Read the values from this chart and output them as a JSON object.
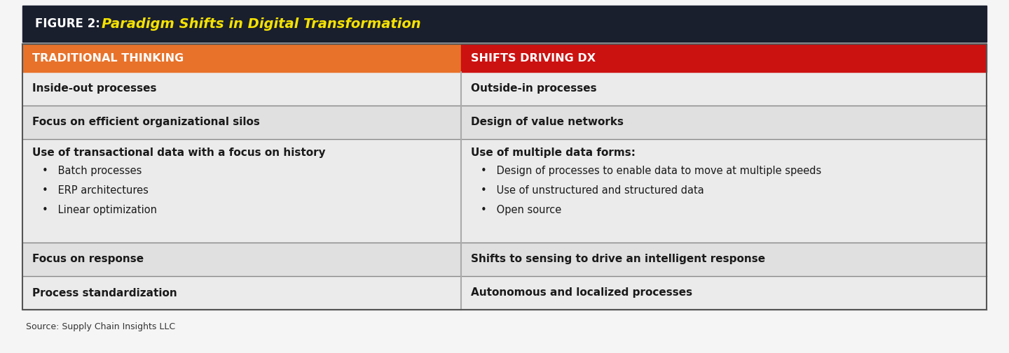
{
  "title_prefix": "FIGURE 2: ",
  "title_main": "Paradigm Shifts in Digital Transformation",
  "title_prefix_color": "#ffffff",
  "title_main_color": "#f5e200",
  "title_bg_color": "#1a1f2e",
  "header_left": "TRADITIONAL THINKING",
  "header_right": "SHIFTS DRIVING DX",
  "header_left_bg": "#e8722a",
  "header_right_bg": "#cc1111",
  "header_text_color": "#ffffff",
  "col_split": 0.455,
  "rows": [
    {
      "left": "Inside-out processes",
      "right": "Outside-in processes",
      "left_bold": true,
      "right_bold": true,
      "bg_left": "#ebebeb",
      "bg_right": "#ebebeb",
      "tall": false
    },
    {
      "left": "Focus on efficient organizational silos",
      "right": "Design of value networks",
      "left_bold": true,
      "right_bold": true,
      "bg_left": "#e0e0e0",
      "bg_right": "#e0e0e0",
      "tall": false
    },
    {
      "left_title": "Use of transactional data with a focus on history",
      "left_bullets": [
        "Batch processes",
        "ERP architectures",
        "Linear optimization"
      ],
      "right_title": "Use of multiple data forms:",
      "right_bullets": [
        "Design of processes to enable data to move at multiple speeds",
        "Use of unstructured and structured data",
        "Open source"
      ],
      "left_bold": false,
      "right_bold": false,
      "bg_left": "#ebebeb",
      "bg_right": "#ebebeb",
      "tall": true
    },
    {
      "left": "Focus on response",
      "right": "Shifts to sensing to drive an intelligent response",
      "left_bold": true,
      "right_bold": true,
      "bg_left": "#e0e0e0",
      "bg_right": "#e0e0e0",
      "tall": false
    },
    {
      "left": "Process standardization",
      "right": "Autonomous and localized processes",
      "left_bold": true,
      "right_bold": true,
      "bg_left": "#ebebeb",
      "bg_right": "#ebebeb",
      "tall": false
    }
  ],
  "source_text": "Source: Supply Chain Insights LLC",
  "fig_bg": "#f5f5f5",
  "border_color": "#888888",
  "text_color": "#1a1a1a"
}
